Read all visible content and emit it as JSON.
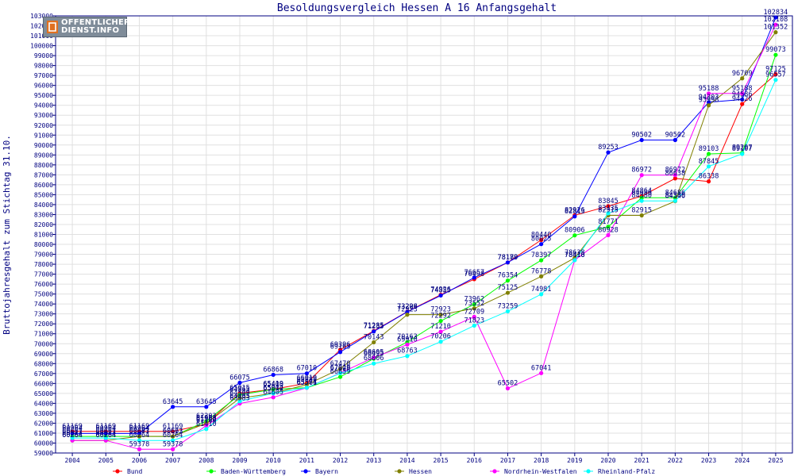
{
  "logo": {
    "line1": "OFFENTLICHER",
    "line2": "DIENST.INFO"
  },
  "colors": {
    "bund": "#ff0000",
    "bw": "#00ff00",
    "bayern": "#0000ff",
    "hessen": "#808000",
    "nrw": "#ff00ff",
    "rp": "#00ffff",
    "frame": "#000080",
    "grid": "#e0e0e0"
  },
  "chart_data": {
    "type": "line",
    "title": "Besoldungsvergleich Hessen A 16 Anfangsgehalt",
    "xlabel": "",
    "ylabel": "Bruttojahresgehalt zum Stichtag 31.10.",
    "x": [
      "2004",
      "2005",
      "2006",
      "2007",
      "2008",
      "2009",
      "2010",
      "2011",
      "2012",
      "2013",
      "2014",
      "2015",
      "2016",
      "2017",
      "2018",
      "2019",
      "2020",
      "2021",
      "2022",
      "2023",
      "2024",
      "2025"
    ],
    "ylim": [
      59000,
      103000
    ],
    "ytick_step": 1000,
    "grid": true,
    "legend_position": "bottom",
    "series": [
      {
        "name": "Bund",
        "color_key": "bund",
        "values": [
          61169,
          61169,
          61169,
          61169,
          61902,
          65015,
          65419,
          66019,
          69396,
          71285,
          73228,
          74926,
          76498,
          78179,
          80440,
          82926,
          83845,
          84864,
          86638,
          86338,
          94126,
          97125
        ]
      },
      {
        "name": "Baden-Württemberg",
        "color_key": "bw",
        "values": [
          60667,
          60667,
          60667,
          60662,
          62203,
          64865,
          65408,
          65574,
          66659,
          68495,
          70163,
          72292,
          73962,
          76354,
          78397,
          80906,
          81771,
          84686,
          84686,
          89103,
          89207,
          99073
        ]
      },
      {
        "name": "Bayern",
        "color_key": "bayern",
        "values": [
          60964,
          60964,
          60964,
          63645,
          63645,
          66075,
          66868,
          67010,
          69163,
          71235,
          73206,
          74855,
          76657,
          78180,
          80025,
          82813,
          89253,
          90502,
          90502,
          94303,
          94586,
          102834
        ]
      },
      {
        "name": "Hessen",
        "color_key": "hessen",
        "values": [
          60264,
          60264,
          60673,
          60673,
          61988,
          64509,
          65014,
          65880,
          67470,
          70143,
          72923,
          72923,
          73552,
          75125,
          76778,
          78638,
          82915,
          82915,
          84346,
          93998,
          96709,
          101352
        ]
      },
      {
        "name": "Nordrhein-Westfalen",
        "color_key": "nrw",
        "values": [
          60264,
          60264,
          59378,
          59378,
          61760,
          63983,
          64605,
          65561,
          67048,
          68605,
          69910,
          71210,
          72709,
          65502,
          67041,
          78418,
          80928,
          86972,
          86972,
          95188,
          95188,
          102108
        ]
      },
      {
        "name": "Rheinland-Pfalz",
        "color_key": "rp",
        "values": [
          60513,
          60513,
          60264,
          60264,
          61410,
          64205,
          65002,
          65574,
          67029,
          68006,
          68763,
          70206,
          71823,
          73259,
          74981,
          78410,
          83135,
          84380,
          84380,
          87845,
          89107,
          96557
        ]
      }
    ]
  }
}
